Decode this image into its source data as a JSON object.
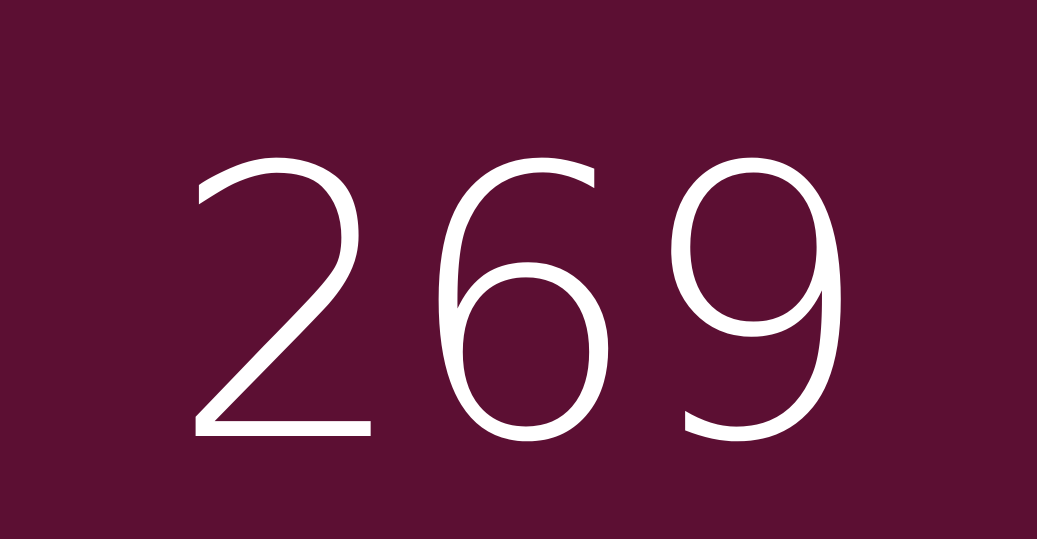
{
  "display": {
    "number": "269",
    "background_color": "#5c0f33",
    "text_color": "#ffffff"
  }
}
